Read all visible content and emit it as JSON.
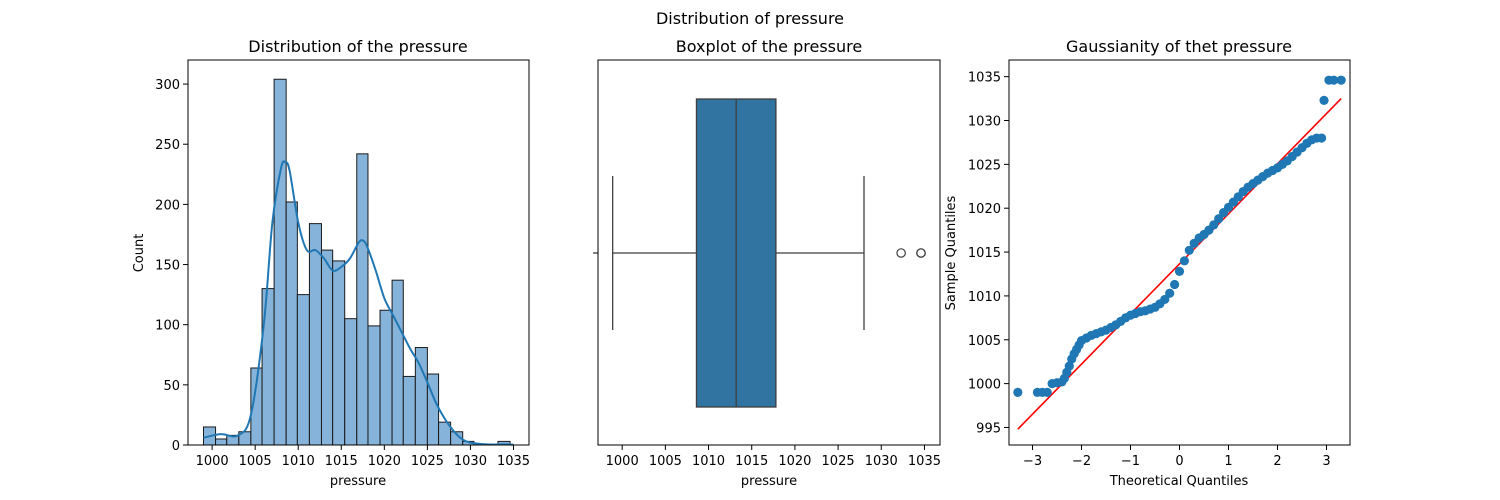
{
  "suptitle": "Distribution of pressure",
  "chart_data": [
    {
      "type": "histogram",
      "title": "Distribution of the pressure",
      "xlabel": "pressure",
      "ylabel": "Count",
      "xlim": [
        997.2,
        1036.8
      ],
      "ylim": [
        0,
        320
      ],
      "xticks": [
        1000,
        1005,
        1010,
        1015,
        1020,
        1025,
        1030,
        1035
      ],
      "yticks": [
        0,
        50,
        100,
        150,
        200,
        250,
        300
      ],
      "bin_edges": [
        999.0,
        1000.4,
        1001.7,
        1003.1,
        1004.5,
        1005.8,
        1007.2,
        1008.6,
        1009.9,
        1011.3,
        1012.7,
        1014.0,
        1015.4,
        1016.8,
        1018.1,
        1019.5,
        1020.9,
        1022.2,
        1023.6,
        1025.0,
        1026.3,
        1027.7,
        1029.1,
        1030.4,
        1031.8,
        1033.2,
        1034.6
      ],
      "counts": [
        15,
        5,
        8,
        11,
        64,
        130,
        304,
        202,
        125,
        184,
        162,
        153,
        105,
        242,
        99,
        112,
        137,
        57,
        81,
        59,
        19,
        11,
        3,
        0,
        0,
        3
      ],
      "kde": {
        "x": [
          999,
          1001,
          1003,
          1004.5,
          1006,
          1007,
          1008,
          1008.5,
          1009,
          1010,
          1011,
          1012,
          1013,
          1014,
          1015,
          1016,
          1017,
          1017.5,
          1018,
          1019,
          1020,
          1021,
          1022,
          1023,
          1024,
          1025,
          1026,
          1027,
          1028,
          1029,
          1030,
          1032,
          1034,
          1035
        ],
        "y": [
          6,
          9,
          8,
          25,
          100,
          185,
          230,
          235,
          228,
          185,
          162,
          162,
          155,
          145,
          148,
          155,
          168,
          170,
          165,
          145,
          122,
          108,
          94,
          80,
          68,
          52,
          35,
          22,
          12,
          5,
          2,
          0.5,
          0.5,
          0.3
        ]
      },
      "colors": {
        "bar": "#86b3d9",
        "kde": "#1f77b4"
      }
    },
    {
      "type": "boxplot",
      "title": "Boxplot of the pressure",
      "xlabel": "pressure",
      "xlim": [
        997.2,
        1036.8
      ],
      "xticks": [
        1000,
        1005,
        1010,
        1015,
        1020,
        1025,
        1030,
        1035
      ],
      "whisker_low": 998.9,
      "q1": 1008.6,
      "median": 1013.2,
      "q3": 1017.8,
      "whisker_high": 1028.0,
      "outliers": [
        1032.3,
        1034.6,
        1034.6
      ],
      "colors": {
        "box": "#3274a1",
        "line": "#3f3f3f"
      }
    },
    {
      "type": "scatter",
      "title": "Gaussianity of thet  pressure",
      "xlabel": "Theoretical Quantiles",
      "ylabel": "Sample Quantiles",
      "xlim": [
        -3.48,
        3.48
      ],
      "ylim": [
        993.0,
        1036.9
      ],
      "xticks": [
        -3,
        -2,
        -1,
        0,
        1,
        2,
        3
      ],
      "yticks": [
        995,
        1000,
        1005,
        1010,
        1015,
        1020,
        1025,
        1030,
        1035
      ],
      "points": [
        [
          -3.3,
          999.0
        ],
        [
          -2.9,
          999.0
        ],
        [
          -2.8,
          999.0
        ],
        [
          -2.7,
          999.0
        ],
        [
          -2.6,
          1000.0
        ],
        [
          -2.5,
          1000.1
        ],
        [
          -2.4,
          1000.2
        ],
        [
          -2.35,
          1000.6
        ],
        [
          -2.3,
          1001.3
        ],
        [
          -2.25,
          1002.0
        ],
        [
          -2.2,
          1002.8
        ],
        [
          -2.15,
          1003.4
        ],
        [
          -2.1,
          1003.9
        ],
        [
          -2.05,
          1004.4
        ],
        [
          -2.0,
          1004.9
        ],
        [
          -1.9,
          1005.2
        ],
        [
          -1.8,
          1005.5
        ],
        [
          -1.7,
          1005.7
        ],
        [
          -1.6,
          1005.9
        ],
        [
          -1.5,
          1006.1
        ],
        [
          -1.4,
          1006.4
        ],
        [
          -1.3,
          1006.7
        ],
        [
          -1.2,
          1007.1
        ],
        [
          -1.1,
          1007.5
        ],
        [
          -1.0,
          1007.8
        ],
        [
          -0.9,
          1008.0
        ],
        [
          -0.8,
          1008.2
        ],
        [
          -0.7,
          1008.3
        ],
        [
          -0.6,
          1008.5
        ],
        [
          -0.5,
          1008.7
        ],
        [
          -0.4,
          1009.1
        ],
        [
          -0.3,
          1009.6
        ],
        [
          -0.2,
          1010.3
        ],
        [
          -0.1,
          1011.3
        ],
        [
          0.0,
          1012.8
        ],
        [
          0.1,
          1014.0
        ],
        [
          0.2,
          1015.2
        ],
        [
          0.3,
          1016.0
        ],
        [
          0.4,
          1016.6
        ],
        [
          0.5,
          1017.0
        ],
        [
          0.6,
          1017.5
        ],
        [
          0.7,
          1018.1
        ],
        [
          0.8,
          1018.8
        ],
        [
          0.9,
          1019.5
        ],
        [
          1.0,
          1020.1
        ],
        [
          1.1,
          1020.7
        ],
        [
          1.2,
          1021.3
        ],
        [
          1.3,
          1021.9
        ],
        [
          1.4,
          1022.4
        ],
        [
          1.5,
          1022.8
        ],
        [
          1.6,
          1023.2
        ],
        [
          1.7,
          1023.6
        ],
        [
          1.8,
          1024.0
        ],
        [
          1.9,
          1024.3
        ],
        [
          2.0,
          1024.6
        ],
        [
          2.1,
          1025.0
        ],
        [
          2.2,
          1025.4
        ],
        [
          2.3,
          1025.9
        ],
        [
          2.4,
          1026.4
        ],
        [
          2.5,
          1026.9
        ],
        [
          2.6,
          1027.4
        ],
        [
          2.7,
          1027.8
        ],
        [
          2.8,
          1028.0
        ],
        [
          2.9,
          1028.0
        ],
        [
          2.95,
          1032.3
        ],
        [
          3.05,
          1034.6
        ],
        [
          3.15,
          1034.6
        ],
        [
          3.3,
          1034.6
        ]
      ],
      "reference_line": [
        [
          -3.3,
          994.8
        ],
        [
          3.3,
          1032.5
        ]
      ],
      "colors": {
        "points": "#1f77b4",
        "line": "#ff0000"
      }
    }
  ]
}
